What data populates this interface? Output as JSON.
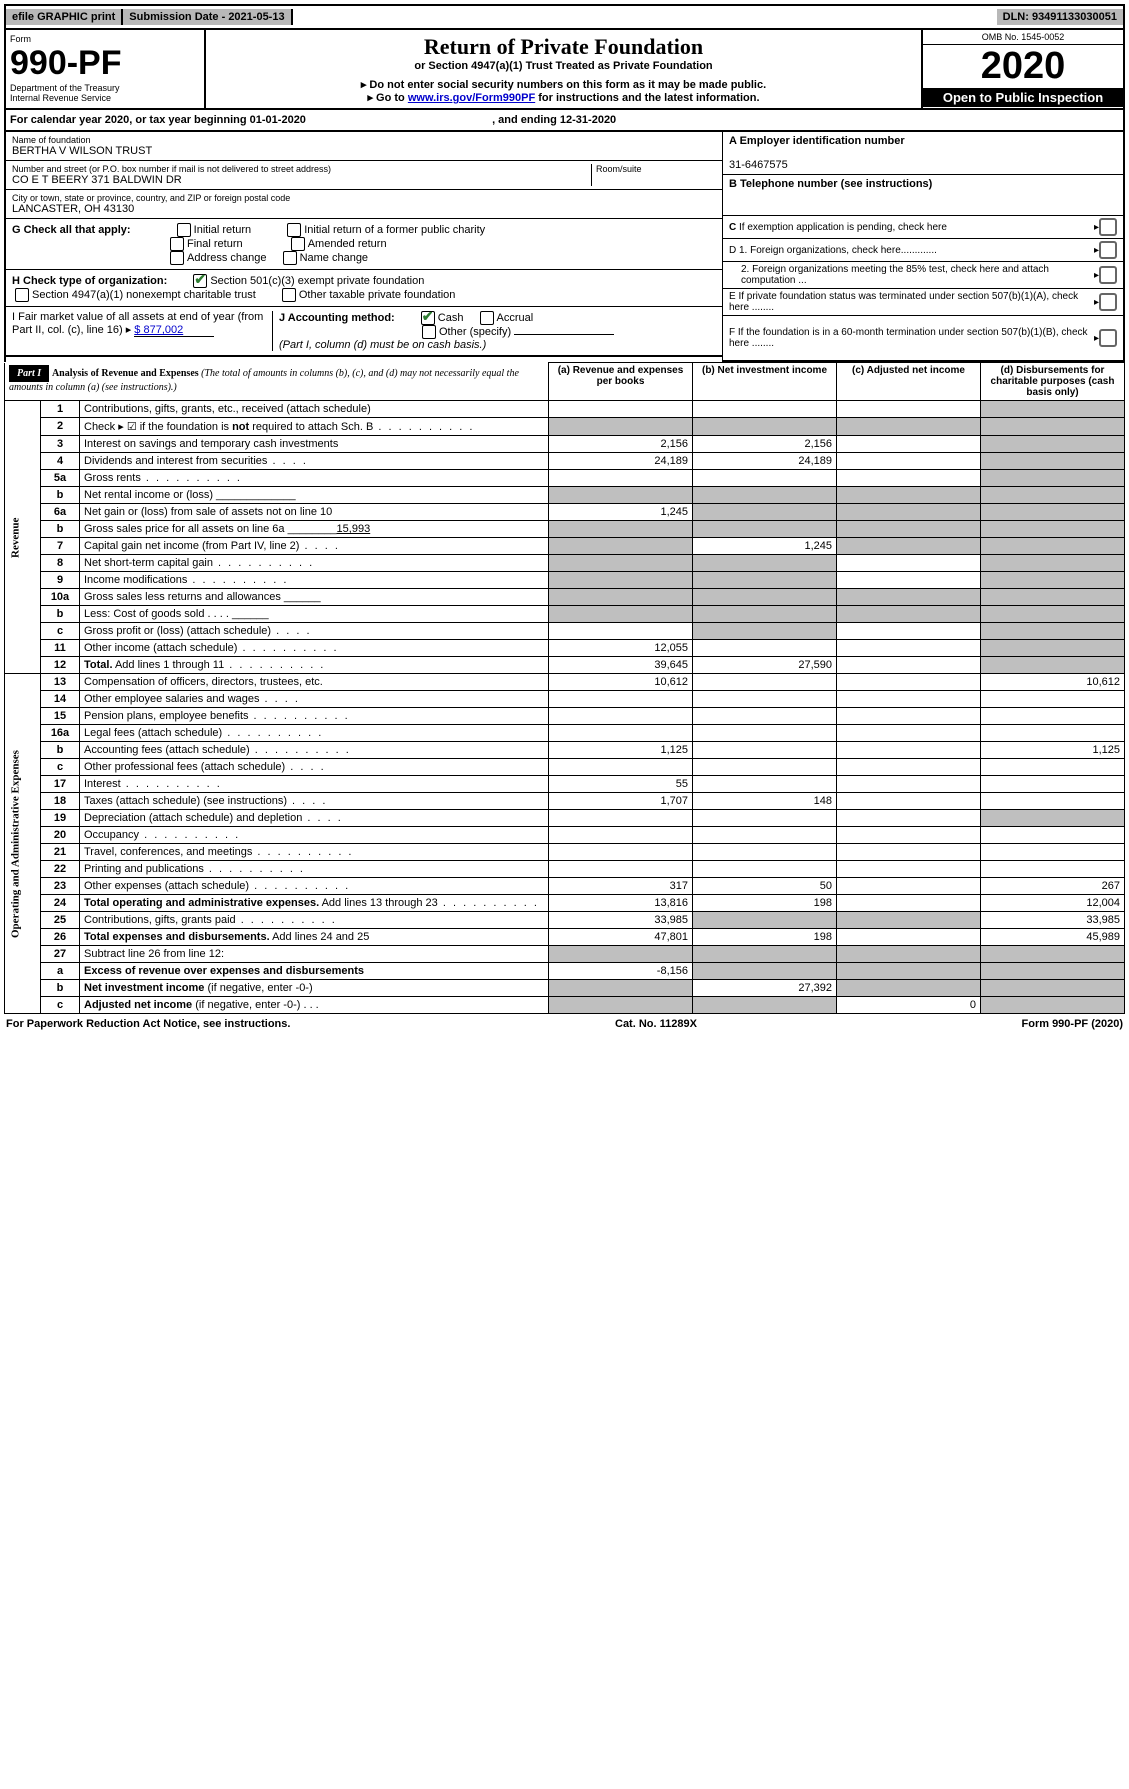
{
  "topbar": {
    "efile": "efile GRAPHIC print",
    "submission": "Submission Date - 2021-05-13",
    "dln": "DLN: 93491133030051"
  },
  "header": {
    "form": "Form",
    "form_num": "990-PF",
    "dept1": "Department of the Treasury",
    "dept2": "Internal Revenue Service",
    "title": "Return of Private Foundation",
    "subtitle": "or Section 4947(a)(1) Trust Treated as Private Foundation",
    "warn": "▸ Do not enter social security numbers on this form as it may be made public.",
    "goto_pre": "▸ Go to ",
    "goto_link": "www.irs.gov/Form990PF",
    "goto_post": " for instructions and the latest information.",
    "omb": "OMB No. 1545-0052",
    "year": "2020",
    "open": "Open to Public Inspection"
  },
  "calyear": {
    "pre": "For calendar year 2020, or tax year beginning ",
    "begin": "01-01-2020",
    "mid": " , and ending ",
    "end": "12-31-2020"
  },
  "nameblock": {
    "name_label": "Name of foundation",
    "name": "BERTHA V WILSON TRUST",
    "addr_label": "Number and street (or P.O. box number if mail is not delivered to street address)",
    "addr": "CO E T BEERY 371 BALDWIN DR",
    "room_label": "Room/suite",
    "city_label": "City or town, state or province, country, and ZIP or foreign postal code",
    "city": "LANCASTER, OH  43130"
  },
  "rightinfo": {
    "a_label": "A Employer identification number",
    "a_val": "31-6467575",
    "b_label": "B Telephone number (see instructions)",
    "c_label": "C If exemption application is pending, check here",
    "d1": "D 1. Foreign organizations, check here.............",
    "d2": "2. Foreign organizations meeting the 85% test, check here and attach computation ...",
    "e": "E  If private foundation status was terminated under section 507(b)(1)(A), check here ........",
    "f": "F  If the foundation is in a 60-month termination under section 507(b)(1)(B), check here ........"
  },
  "checks": {
    "g_label": "G Check all that apply:",
    "initial": "Initial return",
    "initial_former": "Initial return of a former public charity",
    "final": "Final return",
    "amended": "Amended return",
    "addr_change": "Address change",
    "name_change": "Name change",
    "h_label": "H Check type of organization:",
    "h1": "Section 501(c)(3) exempt private foundation",
    "h2": "Section 4947(a)(1) nonexempt charitable trust",
    "h3": "Other taxable private foundation",
    "i_label": "I Fair market value of all assets at end of year (from Part II, col. (c), line 16) ▸",
    "i_val": "$  877,002",
    "j_label": "J Accounting method:",
    "cash": "Cash",
    "accrual": "Accrual",
    "other": "Other (specify)",
    "j_note": "(Part I, column (d) must be on cash basis.)"
  },
  "part1": {
    "label": "Part I",
    "title": "Analysis of Revenue and Expenses",
    "title_note": "(The total of amounts in columns (b), (c), and (d) may not necessarily equal the amounts in column (a) (see instructions).)",
    "col_a": "(a)   Revenue and expenses per books",
    "col_b": "(b)  Net investment income",
    "col_c": "(c)  Adjusted net income",
    "col_d": "(d)  Disbursements for charitable purposes (cash basis only)",
    "revenue_label": "Revenue",
    "expenses_label": "Operating and Administrative Expenses"
  },
  "rows": [
    {
      "n": "1",
      "desc": "Contributions, gifts, grants, etc., received (attach schedule)",
      "a": "",
      "b": "",
      "c": "",
      "d": "grey"
    },
    {
      "n": "2",
      "desc": "Check ▸ ☑ if the foundation is <b>not</b> required to attach Sch. B",
      "dots": true,
      "a": "grey",
      "b": "grey",
      "c": "grey",
      "d": "grey"
    },
    {
      "n": "3",
      "desc": "Interest on savings and temporary cash investments",
      "a": "2,156",
      "b": "2,156",
      "c": "",
      "d": "grey"
    },
    {
      "n": "4",
      "desc": "Dividends and interest from securities",
      "dots": "sm",
      "a": "24,189",
      "b": "24,189",
      "c": "",
      "d": "grey"
    },
    {
      "n": "5a",
      "desc": "Gross rents",
      "dots": true,
      "a": "",
      "b": "",
      "c": "",
      "d": "grey"
    },
    {
      "n": "b",
      "desc": "Net rental income or (loss)   _____________",
      "a": "grey",
      "b": "grey",
      "c": "grey",
      "d": "grey"
    },
    {
      "n": "6a",
      "desc": "Net gain or (loss) from sale of assets not on line 10",
      "a": "1,245",
      "b": "grey",
      "c": "grey",
      "d": "grey"
    },
    {
      "n": "b",
      "desc": "Gross sales price for all assets on line 6a ________<u>15,993</u>",
      "a": "grey",
      "b": "grey",
      "c": "grey",
      "d": "grey"
    },
    {
      "n": "7",
      "desc": "Capital gain net income (from Part IV, line 2)",
      "dots": "sm",
      "a": "grey",
      "b": "1,245",
      "c": "grey",
      "d": "grey"
    },
    {
      "n": "8",
      "desc": "Net short-term capital gain",
      "dots": true,
      "a": "grey",
      "b": "grey",
      "c": "",
      "d": "grey"
    },
    {
      "n": "9",
      "desc": "Income modifications",
      "dots": true,
      "a": "grey",
      "b": "grey",
      "c": "",
      "d": "grey"
    },
    {
      "n": "10a",
      "desc": "Gross sales less returns and allowances  ______",
      "a": "grey",
      "b": "grey",
      "c": "grey",
      "d": "grey"
    },
    {
      "n": "b",
      "desc": "Less: Cost of goods sold     .  .  .  .  ______",
      "a": "grey",
      "b": "grey",
      "c": "grey",
      "d": "grey"
    },
    {
      "n": "c",
      "desc": "Gross profit or (loss) (attach schedule)",
      "dots": "sm",
      "a": "",
      "b": "grey",
      "c": "",
      "d": "grey"
    },
    {
      "n": "11",
      "desc": "Other income (attach schedule)",
      "dots": true,
      "a": "12,055",
      "b": "",
      "c": "",
      "d": "grey"
    },
    {
      "n": "12",
      "desc": "<b>Total.</b> Add lines 1 through 11",
      "dots": true,
      "a": "39,645",
      "b": "27,590",
      "c": "",
      "d": "grey"
    },
    {
      "n": "13",
      "desc": "Compensation of officers, directors, trustees, etc.",
      "a": "10,612",
      "b": "",
      "c": "",
      "d": "10,612"
    },
    {
      "n": "14",
      "desc": "Other employee salaries and wages",
      "dots": "sm",
      "a": "",
      "b": "",
      "c": "",
      "d": ""
    },
    {
      "n": "15",
      "desc": "Pension plans, employee benefits",
      "dots": true,
      "a": "",
      "b": "",
      "c": "",
      "d": ""
    },
    {
      "n": "16a",
      "desc": "Legal fees (attach schedule)",
      "dots": true,
      "a": "",
      "b": "",
      "c": "",
      "d": ""
    },
    {
      "n": "b",
      "desc": "Accounting fees (attach schedule)",
      "dots": true,
      "a": "1,125",
      "b": "",
      "c": "",
      "d": "1,125"
    },
    {
      "n": "c",
      "desc": "Other professional fees (attach schedule)",
      "dots": "sm",
      "a": "",
      "b": "",
      "c": "",
      "d": ""
    },
    {
      "n": "17",
      "desc": "Interest",
      "dots": true,
      "a": "55",
      "b": "",
      "c": "",
      "d": ""
    },
    {
      "n": "18",
      "desc": "Taxes (attach schedule) (see instructions)",
      "dots": "sm",
      "a": "1,707",
      "b": "148",
      "c": "",
      "d": ""
    },
    {
      "n": "19",
      "desc": "Depreciation (attach schedule) and depletion",
      "dots": "sm",
      "a": "",
      "b": "",
      "c": "",
      "d": "grey"
    },
    {
      "n": "20",
      "desc": "Occupancy",
      "dots": true,
      "a": "",
      "b": "",
      "c": "",
      "d": ""
    },
    {
      "n": "21",
      "desc": "Travel, conferences, and meetings",
      "dots": true,
      "a": "",
      "b": "",
      "c": "",
      "d": ""
    },
    {
      "n": "22",
      "desc": "Printing and publications",
      "dots": true,
      "a": "",
      "b": "",
      "c": "",
      "d": ""
    },
    {
      "n": "23",
      "desc": "Other expenses (attach schedule)",
      "dots": true,
      "a": "317",
      "b": "50",
      "c": "",
      "d": "267"
    },
    {
      "n": "24",
      "desc": "<b>Total operating and administrative expenses.</b> Add lines 13 through 23",
      "dots": true,
      "a": "13,816",
      "b": "198",
      "c": "",
      "d": "12,004"
    },
    {
      "n": "25",
      "desc": "Contributions, gifts, grants paid",
      "dots": true,
      "a": "33,985",
      "b": "grey",
      "c": "grey",
      "d": "33,985"
    },
    {
      "n": "26",
      "desc": "<b>Total expenses and disbursements.</b> Add lines 24 and 25",
      "a": "47,801",
      "b": "198",
      "c": "",
      "d": "45,989"
    },
    {
      "n": "27",
      "desc": "Subtract line 26 from line 12:",
      "a": "grey",
      "b": "grey",
      "c": "grey",
      "d": "grey"
    },
    {
      "n": "a",
      "desc": "<b>Excess of revenue over expenses and disbursements</b>",
      "a": "-8,156",
      "b": "grey",
      "c": "grey",
      "d": "grey"
    },
    {
      "n": "b",
      "desc": "<b>Net investment income</b> (if negative, enter -0-)",
      "a": "grey",
      "b": "27,392",
      "c": "grey",
      "d": "grey"
    },
    {
      "n": "c",
      "desc": "<b>Adjusted net income</b> (if negative, enter -0-)   .  .  .",
      "a": "grey",
      "b": "grey",
      "c": "0",
      "d": "grey"
    }
  ],
  "footer": {
    "left": "For Paperwork Reduction Act Notice, see instructions.",
    "mid": "Cat. No. 11289X",
    "right": "Form 990-PF (2020)"
  }
}
